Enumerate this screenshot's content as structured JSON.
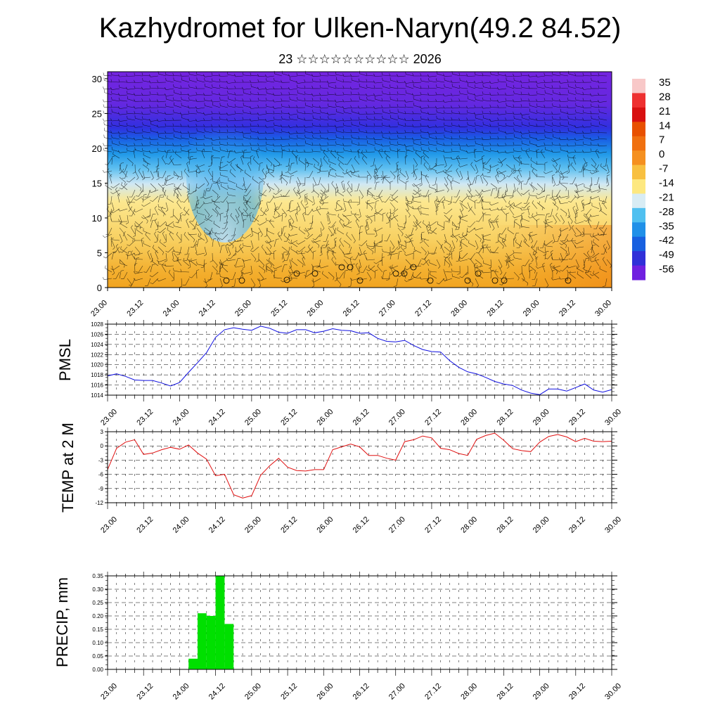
{
  "header": {
    "title": "Kazhydromet for Ulken-Naryn(49.2 84.52)",
    "subtitle": "23 ☆☆☆☆☆☆☆☆☆☆ 2026"
  },
  "chart_data": [
    {
      "type": "heatmap",
      "name": "temperature-cross-section",
      "xlabel": "",
      "ylabel": "",
      "time_ticks": [
        "23.00",
        "23.12",
        "24.00",
        "24.12",
        "25.00",
        "25.12",
        "26.00",
        "26.12",
        "27.00",
        "27.12",
        "28.00",
        "28.12",
        "29.00",
        "29.12",
        "30.00"
      ],
      "ylim": [
        0,
        31
      ],
      "y_ticks": [
        0,
        5,
        10,
        15,
        20,
        25,
        30
      ],
      "colorbar": {
        "labels": [
          "35",
          "28",
          "21",
          "14",
          "7",
          "0",
          "-7",
          "-14",
          "-21",
          "-28",
          "-35",
          "-42",
          "-49",
          "-56"
        ],
        "colors": [
          "#f8c8c8",
          "#ee3030",
          "#d81010",
          "#e85000",
          "#f07010",
          "#f59020",
          "#f8c040",
          "#fde880",
          "#d8ecf4",
          "#50c0f0",
          "#2090e8",
          "#1860e0",
          "#3030d8",
          "#7020e0"
        ]
      },
      "overlays": [
        "wind barbs",
        "precip symbols"
      ]
    },
    {
      "type": "line",
      "name": "pmsl",
      "ylabel": "PMSL",
      "color": "#1010e0",
      "ylim": [
        1014,
        1028
      ],
      "y_ticks": [
        1014,
        1016,
        1018,
        1020,
        1022,
        1024,
        1026,
        1028
      ],
      "x_ticks": [
        "23.00",
        "23.12",
        "24.00",
        "24.12",
        "25.00",
        "25.12",
        "26.00",
        "26.12",
        "27.00",
        "27.12",
        "28.00",
        "28.12",
        "29.00",
        "29.12",
        "30.00"
      ],
      "x": [
        0,
        3,
        6,
        9,
        12,
        15,
        18,
        21,
        24,
        27,
        30,
        33,
        36,
        39,
        42,
        45,
        48,
        51,
        54,
        57,
        60,
        63,
        66,
        69,
        72,
        75,
        78,
        81,
        84,
        87,
        90,
        93,
        96,
        99,
        102,
        105,
        108,
        111,
        114,
        117,
        120,
        123,
        126,
        129,
        132,
        135,
        138,
        141,
        144,
        147,
        150,
        153,
        156,
        159,
        162,
        165,
        168
      ],
      "values": [
        1017.8,
        1018.2,
        1017.7,
        1017.0,
        1016.9,
        1016.9,
        1016.4,
        1015.8,
        1016.5,
        1018.5,
        1020.4,
        1022.4,
        1025.4,
        1026.9,
        1027.3,
        1027.0,
        1026.8,
        1027.6,
        1027.2,
        1026.4,
        1026.2,
        1026.9,
        1026.9,
        1026.3,
        1026.6,
        1027.1,
        1026.8,
        1026.7,
        1026.2,
        1026.3,
        1025.2,
        1024.6,
        1024.5,
        1024.8,
        1023.8,
        1023.0,
        1022.6,
        1022.5,
        1020.8,
        1019.5,
        1018.6,
        1018.2,
        1017.5,
        1016.7,
        1016.2,
        1015.9,
        1015.0,
        1014.4,
        1014.1,
        1015.2,
        1015.2,
        1014.8,
        1015.5,
        1016.2,
        1015.0,
        1014.6,
        1015.1
      ]
    },
    {
      "type": "line",
      "name": "temp-2m",
      "ylabel": "TEMP at 2 M",
      "color": "#e01010",
      "ylim": [
        -12,
        3
      ],
      "y_ticks": [
        -12,
        -9,
        -6,
        -3,
        0,
        3
      ],
      "x_ticks": [
        "23.00",
        "23.12",
        "24.00",
        "24.12",
        "25.00",
        "25.12",
        "26.00",
        "26.12",
        "27.00",
        "27.12",
        "28.00",
        "28.12",
        "29.00",
        "29.12",
        "30.00"
      ],
      "x": [
        0,
        3,
        6,
        9,
        12,
        15,
        18,
        21,
        24,
        27,
        30,
        33,
        36,
        39,
        42,
        45,
        48,
        51,
        54,
        57,
        60,
        63,
        66,
        69,
        72,
        75,
        78,
        81,
        84,
        87,
        90,
        93,
        96,
        99,
        102,
        105,
        108,
        111,
        114,
        117,
        120,
        123,
        126,
        129,
        132,
        135,
        138,
        141,
        144,
        147,
        150,
        153,
        156,
        159,
        162,
        165,
        168
      ],
      "values": [
        -5.0,
        -0.5,
        0.8,
        1.3,
        -1.8,
        -1.5,
        -0.8,
        -0.3,
        -0.7,
        0.2,
        -1.5,
        -2.8,
        -6.3,
        -6.0,
        -10.3,
        -11.0,
        -10.5,
        -6.2,
        -4.2,
        -2.6,
        -4.5,
        -5.2,
        -5.3,
        -5.0,
        -5.0,
        -0.8,
        -0.2,
        0.4,
        -0.2,
        -2.0,
        -2.0,
        -2.6,
        -3.0,
        0.9,
        1.3,
        2.1,
        1.7,
        -0.5,
        -0.8,
        -1.6,
        -2.0,
        1.4,
        2.2,
        2.7,
        1.2,
        -0.6,
        -1.0,
        -1.2,
        0.8,
        2.0,
        2.4,
        1.9,
        0.9,
        1.6,
        1.0,
        0.9,
        1.0
      ]
    },
    {
      "type": "bar",
      "name": "precip",
      "ylabel": "PRECIP, mm",
      "color": "#00e000",
      "ylim": [
        0,
        0.35
      ],
      "y_ticks": [
        "0.00",
        "0.05",
        "0.10",
        "0.15",
        "0.20",
        "0.25",
        "0.30",
        "0.35"
      ],
      "x_ticks": [
        "23.00",
        "23.12",
        "24.00",
        "24.12",
        "25.00",
        "25.12",
        "26.00",
        "26.12",
        "27.00",
        "27.12",
        "28.00",
        "28.12",
        "29.00",
        "29.12",
        "30.00"
      ],
      "bars": [
        {
          "start": 27,
          "end": 30,
          "value": 0.04
        },
        {
          "start": 30,
          "end": 33,
          "value": 0.21
        },
        {
          "start": 33,
          "end": 36,
          "value": 0.2
        },
        {
          "start": 36,
          "end": 39,
          "value": 0.35
        },
        {
          "start": 39,
          "end": 42,
          "value": 0.17
        }
      ]
    }
  ]
}
